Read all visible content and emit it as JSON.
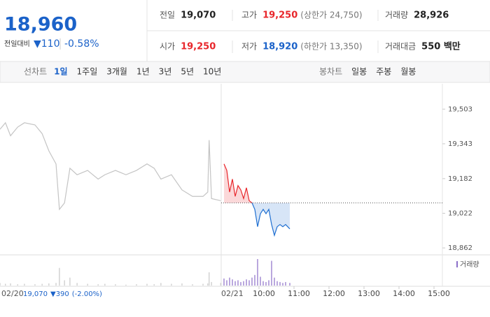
{
  "quote": {
    "price": "18,960",
    "change_label": "전일대비",
    "change": "▼110",
    "change_pct": "-0.58%"
  },
  "stats": [
    {
      "label": "전일",
      "value": "19,070"
    },
    {
      "label": "고가",
      "value": "19,250",
      "note": "(상한가 24,750)"
    },
    {
      "label": "거래량",
      "value": "28,926"
    },
    {
      "label": "시가",
      "value": "19,250"
    },
    {
      "label": "저가",
      "value": "18,920",
      "note": "(하한가 13,350)"
    },
    {
      "label": "거래대금",
      "value": "550 백만"
    }
  ],
  "tabs": {
    "line_label": "선차트",
    "line": [
      "1일",
      "1주일",
      "3개월",
      "1년",
      "3년",
      "5년",
      "10년"
    ],
    "active_index": 0,
    "candle_label": "봉차트",
    "candle": [
      "일봉",
      "주봉",
      "월봉"
    ]
  },
  "chart_data": {
    "type": "line",
    "ylim": [
      18830,
      19620
    ],
    "yticks": [
      {
        "value": 19503,
        "label": "19,503"
      },
      {
        "value": 19343,
        "label": "19,343"
      },
      {
        "value": 19182,
        "label": "19,182"
      },
      {
        "value": 19022,
        "label": "19,022"
      },
      {
        "value": 18862,
        "label": "18,862"
      }
    ],
    "reference": 19070,
    "day_labels": [
      "02/20",
      "02/21"
    ],
    "xticks": [
      {
        "value": 10,
        "label": "10:00"
      },
      {
        "value": 11,
        "label": "11:00"
      },
      {
        "value": 12,
        "label": "12:00"
      },
      {
        "value": 13,
        "label": "13:00"
      },
      {
        "value": 14,
        "label": "14:00"
      },
      {
        "value": 15,
        "label": "15:00"
      }
    ],
    "series": [
      {
        "color": "#c4c4c4",
        "x": [
          9.0,
          9.16,
          9.31,
          9.52,
          9.72,
          10.03,
          10.24,
          10.44,
          10.65,
          10.75,
          10.9,
          11.06,
          11.27,
          11.58,
          11.89,
          12.09,
          12.4,
          12.71,
          13.02,
          13.33,
          13.54,
          13.74,
          14.05,
          14.36,
          14.67,
          14.98,
          15.12,
          15.16,
          15.23,
          15.5
        ],
        "values": [
          19410,
          19440,
          19380,
          19420,
          19440,
          19430,
          19390,
          19310,
          19250,
          19040,
          19070,
          19230,
          19200,
          19220,
          19180,
          19200,
          19220,
          19200,
          19220,
          19250,
          19230,
          19180,
          19200,
          19130,
          19100,
          19100,
          19120,
          19360,
          19090,
          19080
        ],
        "volume": [
          300,
          200,
          250,
          150,
          200,
          150,
          200,
          250,
          300,
          2000,
          600,
          900,
          300,
          200,
          150,
          200,
          150,
          100,
          150,
          200,
          150,
          300,
          200,
          250,
          150,
          200,
          250,
          1500,
          400,
          300
        ]
      },
      {
        "up_color": "#e8262b",
        "down_color": "#1f6fd1",
        "x": [
          9.0,
          9.08,
          9.16,
          9.24,
          9.32,
          9.4,
          9.48,
          9.56,
          9.64,
          9.72,
          9.8,
          9.88,
          9.96,
          10.04,
          10.12,
          10.2,
          10.28,
          10.36,
          10.44,
          10.52,
          10.6,
          10.68,
          10.76,
          10.88
        ],
        "values": [
          19250,
          19220,
          19120,
          19180,
          19100,
          19150,
          19130,
          19090,
          19140,
          19080,
          19070,
          19040,
          18960,
          19020,
          19040,
          19020,
          19040,
          18970,
          18920,
          18960,
          18970,
          18960,
          18970,
          18950
        ],
        "volume": [
          800,
          600,
          900,
          700,
          500,
          600,
          400,
          500,
          700,
          600,
          900,
          1200,
          3000,
          1000,
          500,
          400,
          600,
          2800,
          900,
          500,
          400,
          300,
          400,
          300
        ]
      }
    ],
    "volume_legend": "거래량",
    "footer": {
      "date": "02/20",
      "price": "19,070",
      "change": "▼390",
      "change_pct": "(-2.00%)"
    }
  }
}
